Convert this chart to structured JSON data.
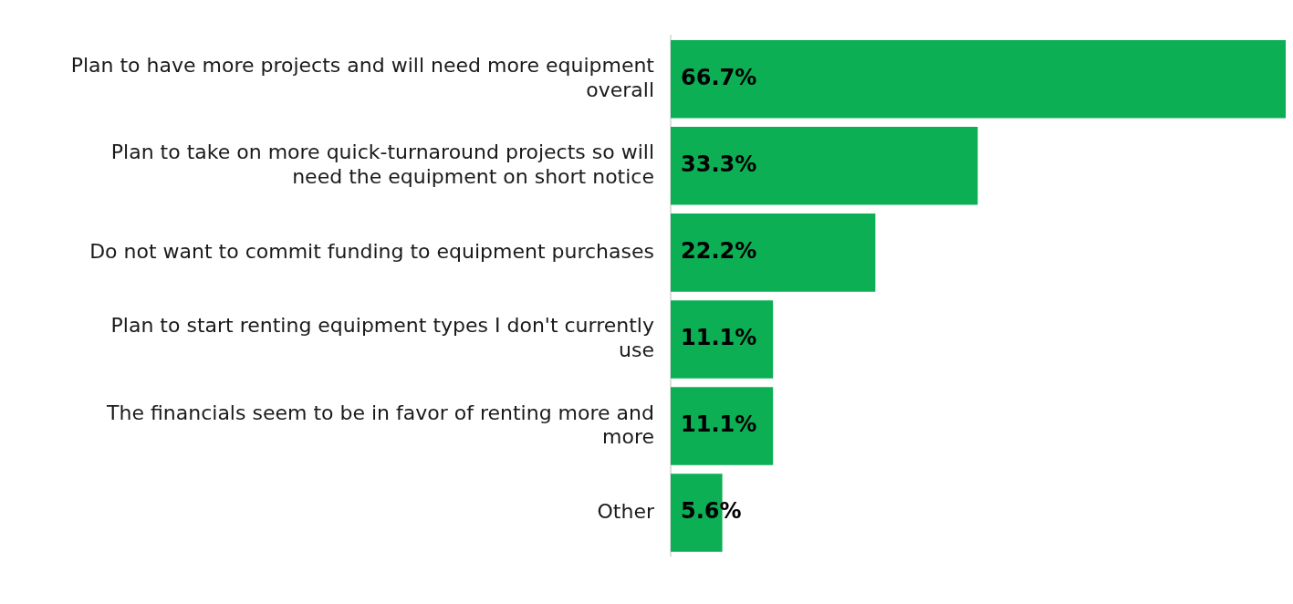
{
  "chart_data": {
    "type": "bar",
    "orientation": "horizontal",
    "categories": [
      "Plan to have more projects and will need more equipment overall",
      "Plan to take on more quick-turnaround projects so will need the equipment on short notice",
      "Do not want to commit funding to equipment purchases",
      "Plan to start renting equipment types I don't currently use",
      "The financials seem to be in favor of renting more and more",
      "Other"
    ],
    "values": [
      66.7,
      33.3,
      22.2,
      11.1,
      11.1,
      5.6
    ],
    "value_labels": [
      "66.7%",
      "33.3%",
      "22.2%",
      "11.1%",
      "11.1%",
      "5.6%"
    ],
    "color": "#0daf55",
    "tick_labels": "y"
  }
}
